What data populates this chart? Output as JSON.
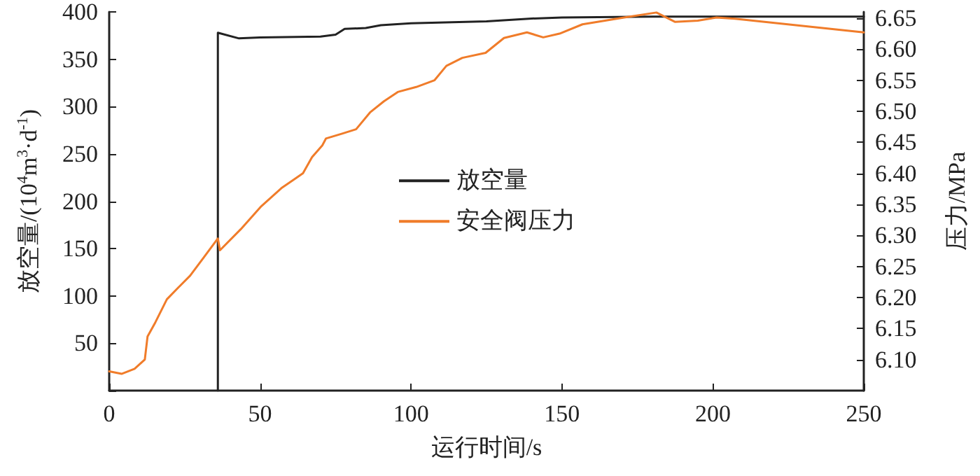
{
  "chart_data": {
    "type": "line",
    "xlabel": "运行时间/s",
    "ylabel": "放空量/(10$^{4}$m$^{3}$·d$^{-1}$)",
    "y2label": "压力/MPa",
    "xlim": [
      0,
      250
    ],
    "xticks": [
      0,
      50,
      100,
      150,
      200,
      250
    ],
    "ylim": [
      0,
      400
    ],
    "yticks": [
      {
        "value": 0,
        "label": null
      },
      50,
      100,
      150,
      200,
      250,
      300,
      350,
      400
    ],
    "y2lim": [
      6.05,
      6.66
    ],
    "y2ticks": [
      {
        "value": 6.1,
        "label": "6.10"
      },
      {
        "value": 6.15,
        "label": "6.15"
      },
      {
        "value": 6.2,
        "label": "6.20"
      },
      {
        "value": 6.25,
        "label": "6.25"
      },
      {
        "value": 6.3,
        "label": "6.30"
      },
      {
        "value": 6.35,
        "label": "6.35"
      },
      {
        "value": 6.4,
        "label": "6.40"
      },
      {
        "value": 6.45,
        "label": "6.45"
      },
      {
        "value": 6.5,
        "label": "6.50"
      },
      {
        "value": 6.55,
        "label": "6.55"
      },
      {
        "value": 6.6,
        "label": "6.60"
      },
      {
        "value": 6.65,
        "label": "6.65"
      }
    ],
    "grid": false,
    "legend": "center",
    "marker": "none",
    "line_style": "solid",
    "series": [
      {
        "name": "放空量",
        "color": "#222222",
        "x": [
          36,
          36,
          43,
          50,
          70,
          75,
          78,
          85,
          90,
          100,
          125,
          140,
          150,
          180,
          250
        ],
        "values": [
          0,
          378,
          372,
          373,
          374,
          376,
          382,
          383,
          386,
          388,
          390,
          393,
          394,
          395,
          395
        ]
      },
      {
        "name": "安全阀压力",
        "color": "#f07c2a",
        "axis": "y2",
        "x": [
          0,
          4.1,
          8.4,
          11.8,
          12.7,
          15.3,
          19.1,
          22.9,
          26.8,
          31.4,
          36,
          36.7,
          43.6,
          50.4,
          57.3,
          64.2,
          67.2,
          70.6,
          71.8,
          77.2,
          81.8,
          86.4,
          91,
          95.6,
          101.7,
          107.8,
          111.7,
          117,
          124.7,
          130.8,
          138.4,
          143.8,
          149.2,
          156.8,
          170.6,
          181.3,
          187.4,
          195,
          201.2,
          207.3,
          250
        ],
        "values": [
          6.081,
          6.077,
          6.085,
          6.1,
          6.137,
          6.16,
          6.197,
          6.216,
          6.235,
          6.265,
          6.295,
          6.276,
          6.31,
          6.347,
          6.377,
          6.4,
          6.426,
          6.445,
          6.456,
          6.464,
          6.471,
          6.498,
          6.516,
          6.531,
          6.539,
          6.55,
          6.573,
          6.586,
          6.594,
          6.618,
          6.627,
          6.619,
          6.625,
          6.64,
          6.651,
          6.659,
          6.644,
          6.646,
          6.651,
          6.649,
          6.627
        ]
      }
    ]
  }
}
